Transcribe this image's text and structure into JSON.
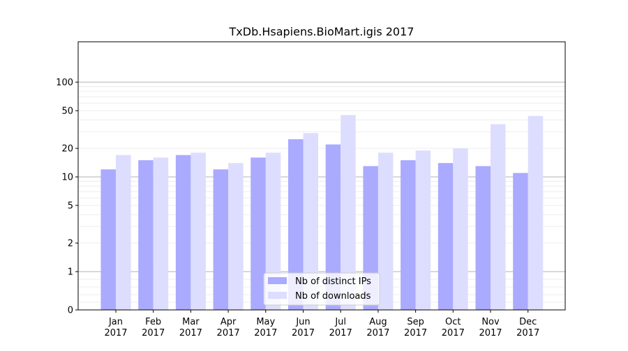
{
  "chart_data": {
    "type": "bar",
    "title": "TxDb.Hsapiens.BioMart.igis 2017",
    "xlabel": "",
    "ylabel": "",
    "y_scale": "symlog",
    "y_ticks": [
      "0",
      "1",
      "2",
      "5",
      "10",
      "20",
      "50",
      "100"
    ],
    "categories": [
      [
        "Jan",
        "2017"
      ],
      [
        "Feb",
        "2017"
      ],
      [
        "Mar",
        "2017"
      ],
      [
        "Apr",
        "2017"
      ],
      [
        "May",
        "2017"
      ],
      [
        "Jun",
        "2017"
      ],
      [
        "Jul",
        "2017"
      ],
      [
        "Aug",
        "2017"
      ],
      [
        "Sep",
        "2017"
      ],
      [
        "Oct",
        "2017"
      ],
      [
        "Nov",
        "2017"
      ],
      [
        "Dec",
        "2017"
      ]
    ],
    "series": [
      {
        "name": "Nb of distinct IPs",
        "color": "#aaaaff",
        "values": [
          12,
          15,
          17,
          12,
          16,
          25,
          22,
          13,
          15,
          14,
          13,
          11
        ]
      },
      {
        "name": "Nb of downloads",
        "color": "#ddddff",
        "values": [
          17,
          16,
          18,
          14,
          18,
          29,
          45,
          18,
          19,
          20,
          36,
          44
        ]
      }
    ],
    "legend_position": "bottom-center",
    "grid": true
  }
}
